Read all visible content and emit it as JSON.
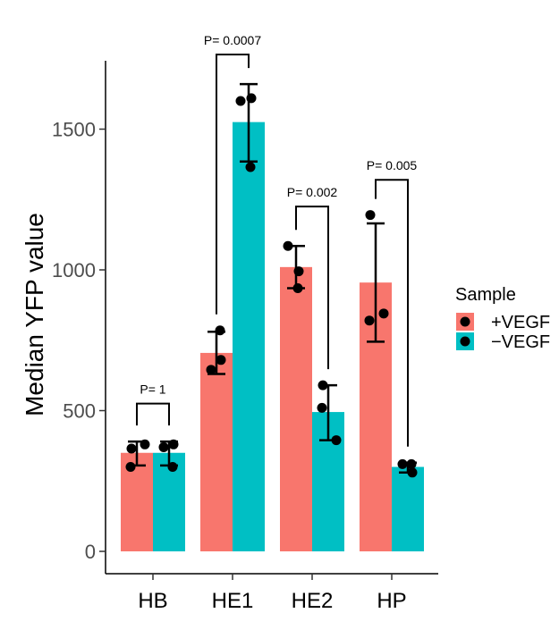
{
  "chart_data": {
    "type": "bar",
    "title": "",
    "xlabel": "",
    "ylabel": "Median YFP value",
    "ylim": [
      0,
      1750
    ],
    "yticks": [
      0,
      500,
      1000,
      1500
    ],
    "categories": [
      "HB",
      "HE1",
      "HE2",
      "HP"
    ],
    "grid": false,
    "legend": {
      "title": "Sample",
      "position": "right"
    },
    "series": [
      {
        "name": "+VEGF",
        "color": "#F8766D",
        "values": [
          350,
          705,
          1010,
          955
        ],
        "error": [
          [
            305,
            390
          ],
          [
            630,
            780
          ],
          [
            935,
            1085
          ],
          [
            745,
            1165
          ]
        ],
        "points": [
          [
            365,
            380,
            300
          ],
          [
            785,
            645,
            680
          ],
          [
            1085,
            995,
            935
          ],
          [
            1195,
            845,
            820
          ]
        ]
      },
      {
        "name": "−VEGF",
        "color": "#00BFC4",
        "values": [
          350,
          1525,
          495,
          300
        ],
        "error": [
          [
            305,
            390
          ],
          [
            1385,
            1660
          ],
          [
            395,
            590
          ],
          [
            280,
            315
          ]
        ],
        "points": [
          [
            300,
            370,
            380
          ],
          [
            1600,
            1610,
            1365
          ],
          [
            590,
            395,
            510
          ],
          [
            310,
            310,
            280
          ]
        ]
      }
    ],
    "annotations": [
      {
        "category": "HB",
        "label": "P= 1",
        "bracket_y": 525
      },
      {
        "category": "HE1",
        "label": "P= 0.0007",
        "bracket_y": 1765
      },
      {
        "category": "HE2",
        "label": "P= 0.002",
        "bracket_y": 1225
      },
      {
        "category": "HP",
        "label": "P= 0.005",
        "bracket_y": 1320
      }
    ]
  }
}
